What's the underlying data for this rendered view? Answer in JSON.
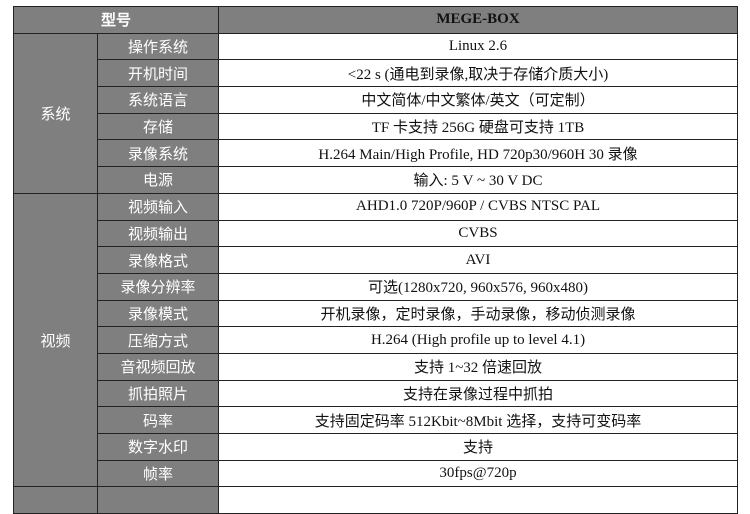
{
  "header": {
    "label": "型号",
    "model": "MEGE-BOX"
  },
  "groups": [
    {
      "name": "系统",
      "rows": [
        {
          "k": "操作系统",
          "v": "Linux 2.6"
        },
        {
          "k": "开机时间",
          "v": "<22 s (通电到录像,取决于存储介质大小)"
        },
        {
          "k": "系统语言",
          "v": "中文简体/中文繁体/英文（可定制）"
        },
        {
          "k": "存储",
          "v": "TF 卡支持 256G  硬盘可支持 1TB"
        },
        {
          "k": "录像系统",
          "v": "H.264 Main/High Profile, HD 720p30/960H 30 录像"
        },
        {
          "k": "电源",
          "v": "输入: 5 V ~ 30 V DC"
        }
      ]
    },
    {
      "name": "视频",
      "rows": [
        {
          "k": "视频输入",
          "v": "AHD1.0 720P/960P /    CVBS NTSC PAL"
        },
        {
          "k": "视频输出",
          "v": "CVBS"
        },
        {
          "k": "录像格式",
          "v": "AVI"
        },
        {
          "k": "录像分辨率",
          "v": "可选(1280x720, 960x576, 960x480)"
        },
        {
          "k": "录像模式",
          "v": "开机录像，定时录像，手动录像，移动侦测录像"
        },
        {
          "k": "压缩方式",
          "v": "H.264 (High profile up to level 4.1)"
        },
        {
          "k": "音视频回放",
          "v": "支持 1~32 倍速回放"
        },
        {
          "k": "抓拍照片",
          "v": "支持在录像过程中抓拍"
        },
        {
          "k": "码率",
          "v": "支持固定码率 512Kbit~8Mbit 选择，支持可变码率"
        },
        {
          "k": "数字水印",
          "v": "支持"
        },
        {
          "k": "帧率",
          "v": "30fps@720p"
        }
      ]
    }
  ]
}
